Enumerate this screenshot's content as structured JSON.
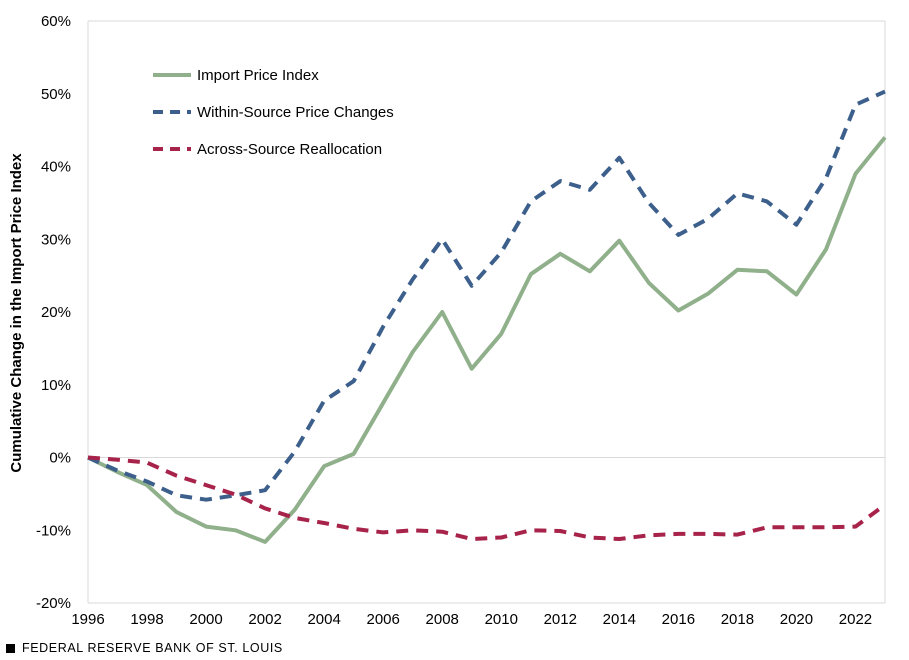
{
  "chart_data": {
    "type": "line",
    "title": "",
    "xlabel": "",
    "ylabel": "Cumulative Change in the Import Price Index",
    "x": [
      1996,
      1997,
      1998,
      1999,
      2000,
      2001,
      2002,
      2003,
      2004,
      2005,
      2006,
      2007,
      2008,
      2009,
      2010,
      2011,
      2012,
      2013,
      2014,
      2015,
      2016,
      2017,
      2018,
      2019,
      2020,
      2021,
      2022,
      2023
    ],
    "xlim": [
      1996,
      2023
    ],
    "ylim": [
      -20,
      60
    ],
    "x_ticks": [
      1996,
      1998,
      2000,
      2002,
      2004,
      2006,
      2008,
      2010,
      2012,
      2014,
      2016,
      2018,
      2020,
      2022
    ],
    "y_ticks": [
      -20,
      -10,
      0,
      10,
      20,
      30,
      40,
      50,
      60
    ],
    "y_tick_labels": [
      "-20%",
      "-10%",
      "0%",
      "10%",
      "20%",
      "30%",
      "40%",
      "50%",
      "60%"
    ],
    "grid": false,
    "legend_position": "top-left",
    "series": [
      {
        "name": "Import Price Index",
        "style": "solid",
        "color": "#8fb08a",
        "values": [
          0,
          -2.0,
          -3.8,
          -7.5,
          -9.5,
          -10.0,
          -11.6,
          -7.2,
          -1.2,
          0.5,
          7.5,
          14.5,
          20.0,
          12.2,
          17.0,
          25.2,
          28.0,
          25.6,
          29.8,
          24.0,
          20.2,
          22.5,
          25.8,
          25.6,
          22.4,
          28.6,
          39.0,
          44.0
        ]
      },
      {
        "name": "Within-Source Price Changes",
        "style": "dashed",
        "color": "#3c5f8c",
        "values": [
          0,
          -1.8,
          -3.3,
          -5.2,
          -5.8,
          -5.2,
          -4.5,
          0.8,
          7.8,
          10.5,
          18.0,
          24.5,
          30.0,
          23.6,
          28.2,
          35.2,
          38.0,
          36.8,
          41.2,
          35.0,
          30.6,
          32.8,
          36.3,
          35.2,
          32.0,
          38.4,
          48.5,
          50.3
        ]
      },
      {
        "name": "Across-Source Reallocation",
        "style": "dashed",
        "color": "#a8234a",
        "values": [
          0,
          -0.3,
          -0.7,
          -2.5,
          -3.8,
          -5.1,
          -7.0,
          -8.3,
          -9.0,
          -9.8,
          -10.3,
          -10.0,
          -10.2,
          -11.2,
          -11.0,
          -10.0,
          -10.1,
          -11.0,
          -11.2,
          -10.7,
          -10.5,
          -10.5,
          -10.6,
          -9.6,
          -9.6,
          -9.6,
          -9.5,
          -6.5
        ]
      }
    ]
  },
  "footer": {
    "source": "FEDERAL RESERVE BANK OF ST. LOUIS"
  }
}
